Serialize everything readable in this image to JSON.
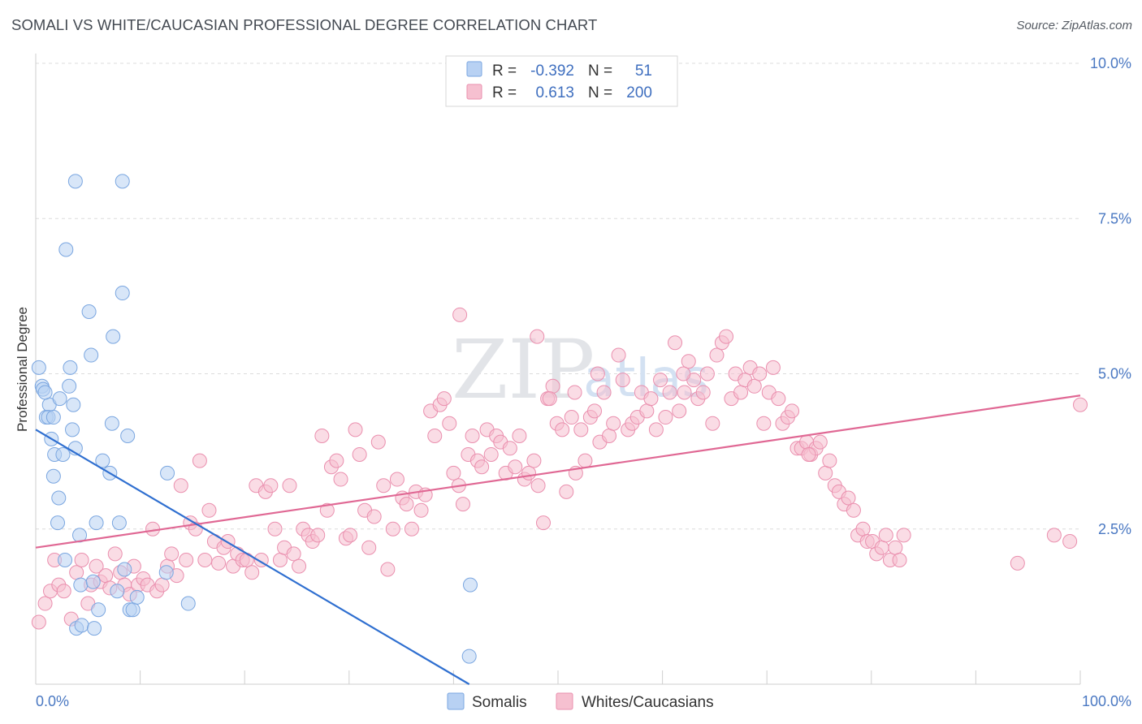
{
  "title": "SOMALI VS WHITE/CAUCASIAN PROFESSIONAL DEGREE CORRELATION CHART",
  "source": "Source: ZipAtlas.com",
  "watermark": {
    "part1": "ZIP",
    "part2": "atlas"
  },
  "colors": {
    "somali_fill": "#b8d1f3",
    "somali_stroke": "#7aa6e0",
    "somali_line": "#2f6fd0",
    "white_fill": "#f6c0d0",
    "white_stroke": "#ea8fae",
    "white_line": "#e06894",
    "axis_label": "#4a78c2",
    "grid": "#dcdcdc"
  },
  "legend": {
    "rows": [
      {
        "r_label": "R =",
        "r_value": "-0.392",
        "n_label": "N =",
        "n_value": "51"
      },
      {
        "r_label": "R =",
        "r_value": "0.613",
        "n_label": "N =",
        "n_value": "200"
      }
    ]
  },
  "bottom_legend": [
    "Somalis",
    "Whites/Caucasians"
  ],
  "chart_data": {
    "type": "scatter",
    "title": "SOMALI VS WHITE/CAUCASIAN PROFESSIONAL DEGREE CORRELATION CHART",
    "xlabel": "",
    "ylabel": "Professional Degree",
    "xlim": [
      0,
      100
    ],
    "ylim": [
      0,
      10
    ],
    "x_tick_labels": [
      "0.0%",
      "100.0%"
    ],
    "y_ticks": [
      2.5,
      5.0,
      7.5,
      10.0
    ],
    "y_tick_labels": [
      "2.5%",
      "5.0%",
      "7.5%",
      "10.0%"
    ],
    "grid": "horizontal dashed",
    "legend_position": "top-center",
    "series": [
      {
        "name": "Somalis",
        "r": -0.392,
        "n": 51,
        "trend": {
          "x": [
            0,
            41.5
          ],
          "y": [
            4.1,
            0.0
          ]
        },
        "points": [
          [
            0.3,
            5.1
          ],
          [
            0.6,
            4.8
          ],
          [
            0.7,
            4.75
          ],
          [
            1.0,
            4.3
          ],
          [
            1.3,
            4.5
          ],
          [
            1.5,
            3.95
          ],
          [
            1.2,
            4.3
          ],
          [
            1.8,
            3.7
          ],
          [
            1.7,
            3.35
          ],
          [
            2.1,
            2.6
          ],
          [
            2.2,
            3.0
          ],
          [
            2.3,
            4.6
          ],
          [
            2.6,
            3.7
          ],
          [
            2.8,
            2.0
          ],
          [
            3.2,
            4.8
          ],
          [
            3.3,
            5.1
          ],
          [
            3.5,
            4.1
          ],
          [
            3.6,
            4.5
          ],
          [
            3.8,
            3.8
          ],
          [
            3.9,
            0.9
          ],
          [
            4.2,
            2.4
          ],
          [
            4.3,
            1.6
          ],
          [
            4.4,
            0.95
          ],
          [
            5.1,
            6.0
          ],
          [
            5.3,
            5.3
          ],
          [
            5.5,
            1.65
          ],
          [
            5.6,
            0.9
          ],
          [
            5.8,
            2.6
          ],
          [
            6.0,
            1.2
          ],
          [
            6.4,
            3.6
          ],
          [
            7.1,
            3.4
          ],
          [
            7.3,
            4.2
          ],
          [
            7.4,
            5.6
          ],
          [
            7.8,
            1.5
          ],
          [
            8.0,
            2.6
          ],
          [
            8.3,
            6.3
          ],
          [
            8.5,
            1.85
          ],
          [
            8.8,
            4.0
          ],
          [
            9.0,
            1.2
          ],
          [
            9.3,
            1.2
          ],
          [
            9.7,
            1.4
          ],
          [
            12.5,
            1.8
          ],
          [
            12.6,
            3.4
          ],
          [
            14.6,
            1.3
          ],
          [
            3.8,
            8.1
          ],
          [
            8.3,
            8.1
          ],
          [
            2.9,
            7.0
          ],
          [
            1.7,
            4.3
          ],
          [
            0.9,
            4.7
          ],
          [
            41.5,
            0.45
          ],
          [
            41.6,
            1.6
          ]
        ]
      },
      {
        "name": "Whites/Caucasians",
        "r": 0.613,
        "n": 200,
        "trend": {
          "x": [
            0,
            100
          ],
          "y": [
            2.2,
            4.65
          ]
        },
        "points": [
          [
            0.3,
            1.0
          ],
          [
            0.9,
            1.3
          ],
          [
            1.4,
            1.5
          ],
          [
            1.8,
            2.0
          ],
          [
            2.2,
            1.6
          ],
          [
            2.7,
            1.5
          ],
          [
            3.4,
            1.05
          ],
          [
            3.9,
            1.8
          ],
          [
            4.4,
            2.0
          ],
          [
            5.0,
            1.3
          ],
          [
            5.3,
            1.6
          ],
          [
            5.8,
            1.9
          ],
          [
            6.2,
            1.65
          ],
          [
            6.7,
            1.75
          ],
          [
            7.1,
            1.55
          ],
          [
            7.6,
            2.1
          ],
          [
            8.1,
            1.8
          ],
          [
            8.5,
            1.6
          ],
          [
            9.0,
            1.45
          ],
          [
            9.4,
            1.9
          ],
          [
            9.8,
            1.6
          ],
          [
            10.3,
            1.7
          ],
          [
            10.7,
            1.6
          ],
          [
            11.2,
            2.5
          ],
          [
            11.6,
            1.5
          ],
          [
            12.1,
            1.6
          ],
          [
            12.6,
            1.9
          ],
          [
            13.0,
            2.1
          ],
          [
            13.5,
            1.75
          ],
          [
            13.9,
            3.2
          ],
          [
            14.4,
            2.0
          ],
          [
            14.8,
            2.6
          ],
          [
            15.3,
            2.5
          ],
          [
            15.7,
            3.6
          ],
          [
            16.2,
            2.0
          ],
          [
            16.6,
            2.8
          ],
          [
            17.1,
            2.3
          ],
          [
            17.5,
            1.95
          ],
          [
            18.0,
            2.2
          ],
          [
            18.4,
            2.3
          ],
          [
            18.9,
            1.9
          ],
          [
            19.3,
            2.1
          ],
          [
            19.8,
            2.0
          ],
          [
            20.2,
            2.0
          ],
          [
            20.7,
            1.8
          ],
          [
            21.1,
            3.2
          ],
          [
            21.6,
            2.0
          ],
          [
            22.0,
            3.1
          ],
          [
            22.5,
            3.2
          ],
          [
            22.9,
            2.5
          ],
          [
            23.4,
            2.0
          ],
          [
            23.8,
            2.2
          ],
          [
            24.3,
            3.2
          ],
          [
            24.7,
            2.1
          ],
          [
            25.2,
            1.9
          ],
          [
            25.6,
            2.5
          ],
          [
            26.1,
            2.4
          ],
          [
            26.5,
            2.3
          ],
          [
            27.0,
            2.4
          ],
          [
            27.4,
            4.0
          ],
          [
            27.9,
            2.8
          ],
          [
            28.3,
            3.5
          ],
          [
            28.8,
            3.6
          ],
          [
            29.2,
            3.3
          ],
          [
            29.7,
            2.35
          ],
          [
            30.1,
            2.4
          ],
          [
            30.6,
            4.1
          ],
          [
            31.0,
            3.7
          ],
          [
            31.5,
            2.8
          ],
          [
            31.9,
            2.2
          ],
          [
            32.4,
            2.7
          ],
          [
            32.8,
            3.9
          ],
          [
            33.3,
            3.2
          ],
          [
            33.7,
            1.85
          ],
          [
            34.2,
            2.5
          ],
          [
            34.6,
            3.3
          ],
          [
            35.1,
            3.0
          ],
          [
            35.5,
            2.9
          ],
          [
            36.0,
            2.5
          ],
          [
            36.4,
            3.1
          ],
          [
            36.9,
            2.8
          ],
          [
            37.3,
            3.05
          ],
          [
            37.8,
            4.4
          ],
          [
            38.2,
            4.0
          ],
          [
            38.7,
            4.5
          ],
          [
            39.1,
            4.6
          ],
          [
            39.6,
            4.2
          ],
          [
            40.0,
            3.4
          ],
          [
            40.5,
            3.2
          ],
          [
            40.9,
            2.9
          ],
          [
            41.4,
            3.7
          ],
          [
            41.8,
            4.0
          ],
          [
            42.3,
            3.6
          ],
          [
            42.7,
            3.5
          ],
          [
            43.2,
            4.1
          ],
          [
            43.6,
            3.7
          ],
          [
            44.1,
            4.0
          ],
          [
            44.5,
            3.9
          ],
          [
            45.0,
            3.4
          ],
          [
            45.4,
            3.8
          ],
          [
            45.9,
            3.5
          ],
          [
            46.3,
            4.0
          ],
          [
            46.8,
            3.3
          ],
          [
            47.2,
            3.4
          ],
          [
            47.7,
            3.6
          ],
          [
            48.1,
            3.2
          ],
          [
            48.6,
            2.6
          ],
          [
            49.0,
            4.6
          ],
          [
            49.5,
            4.8
          ],
          [
            49.9,
            4.2
          ],
          [
            50.4,
            4.1
          ],
          [
            50.8,
            3.1
          ],
          [
            51.3,
            4.3
          ],
          [
            51.7,
            3.4
          ],
          [
            52.2,
            4.1
          ],
          [
            52.6,
            3.6
          ],
          [
            53.1,
            4.3
          ],
          [
            53.5,
            4.4
          ],
          [
            54.0,
            3.9
          ],
          [
            54.4,
            4.7
          ],
          [
            54.9,
            4.0
          ],
          [
            55.3,
            4.2
          ],
          [
            55.8,
            5.3
          ],
          [
            56.2,
            4.9
          ],
          [
            56.7,
            4.1
          ],
          [
            57.1,
            4.2
          ],
          [
            57.6,
            4.3
          ],
          [
            58.0,
            4.7
          ],
          [
            58.5,
            4.4
          ],
          [
            58.9,
            4.6
          ],
          [
            59.4,
            4.1
          ],
          [
            59.8,
            4.9
          ],
          [
            60.3,
            4.3
          ],
          [
            60.7,
            4.7
          ],
          [
            61.2,
            5.5
          ],
          [
            61.6,
            4.4
          ],
          [
            62.1,
            4.7
          ],
          [
            62.5,
            5.2
          ],
          [
            63.0,
            4.9
          ],
          [
            63.4,
            4.6
          ],
          [
            63.9,
            4.7
          ],
          [
            64.3,
            5.0
          ],
          [
            64.8,
            4.2
          ],
          [
            65.2,
            5.3
          ],
          [
            65.7,
            5.5
          ],
          [
            66.1,
            5.6
          ],
          [
            66.6,
            4.6
          ],
          [
            67.0,
            5.0
          ],
          [
            67.5,
            4.7
          ],
          [
            67.9,
            4.9
          ],
          [
            68.4,
            5.1
          ],
          [
            68.8,
            4.8
          ],
          [
            69.3,
            5.0
          ],
          [
            69.7,
            4.2
          ],
          [
            70.2,
            4.7
          ],
          [
            70.6,
            5.1
          ],
          [
            71.1,
            4.6
          ],
          [
            71.5,
            4.2
          ],
          [
            72.0,
            4.3
          ],
          [
            72.4,
            4.4
          ],
          [
            72.9,
            3.8
          ],
          [
            73.3,
            3.8
          ],
          [
            73.8,
            3.9
          ],
          [
            74.2,
            3.7
          ],
          [
            74.7,
            3.8
          ],
          [
            75.1,
            3.9
          ],
          [
            75.6,
            3.4
          ],
          [
            76.0,
            3.6
          ],
          [
            76.5,
            3.2
          ],
          [
            76.9,
            3.1
          ],
          [
            77.4,
            2.9
          ],
          [
            77.8,
            3.0
          ],
          [
            78.3,
            2.8
          ],
          [
            78.7,
            2.4
          ],
          [
            79.2,
            2.5
          ],
          [
            79.6,
            2.3
          ],
          [
            80.1,
            2.3
          ],
          [
            80.5,
            2.1
          ],
          [
            81.0,
            2.2
          ],
          [
            81.4,
            2.4
          ],
          [
            81.8,
            2.0
          ],
          [
            82.3,
            2.2
          ],
          [
            82.7,
            2.0
          ],
          [
            83.1,
            2.4
          ],
          [
            94.0,
            1.95
          ],
          [
            97.5,
            2.4
          ],
          [
            99.0,
            2.3
          ],
          [
            100.0,
            4.5
          ],
          [
            40.6,
            5.95
          ],
          [
            48.0,
            5.6
          ],
          [
            49.2,
            4.6
          ],
          [
            51.6,
            4.7
          ],
          [
            53.8,
            5.0
          ],
          [
            62.0,
            5.0
          ],
          [
            74.0,
            3.7
          ]
        ]
      }
    ]
  }
}
